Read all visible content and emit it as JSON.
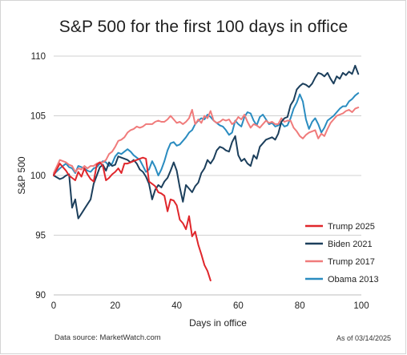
{
  "chart_data": {
    "type": "line",
    "title": "S&P 500 for the first 100 days in office",
    "xlabel": "Days in office",
    "ylabel": "S&P 500",
    "xlim": [
      0,
      100
    ],
    "ylim": [
      90,
      110
    ],
    "x_ticks": [
      0,
      20,
      40,
      60,
      80,
      100
    ],
    "y_ticks": [
      90,
      95,
      100,
      105,
      110
    ],
    "grid": "horizontal",
    "legend_position": "bottom-right",
    "series": [
      {
        "name": "Trump 2025",
        "color": "#e0262b",
        "x": [
          0,
          1,
          2,
          3,
          4,
          5,
          6,
          7,
          8,
          9,
          10,
          11,
          12,
          13,
          14,
          15,
          16,
          17,
          18,
          19,
          20,
          21,
          22,
          23,
          24,
          25,
          26,
          27,
          28,
          29,
          30,
          31,
          32,
          33,
          34,
          35,
          36,
          37,
          38,
          39,
          40,
          41,
          42,
          43,
          44,
          45,
          46,
          47,
          48,
          49,
          50,
          51
        ],
        "y": [
          100.0,
          100.5,
          101.0,
          100.7,
          100.4,
          100.0,
          99.8,
          99.6,
          100.3,
          99.9,
          100.6,
          100.1,
          99.7,
          99.5,
          100.9,
          101.1,
          100.8,
          99.6,
          99.8,
          100.1,
          100.3,
          100.6,
          100.2,
          101.0,
          101.0,
          101.1,
          101.2,
          101.3,
          101.4,
          101.5,
          101.4,
          99.5,
          99.3,
          99.1,
          98.6,
          98.5,
          98.3,
          97.0,
          98.0,
          97.9,
          97.5,
          96.3,
          96.0,
          95.5,
          96.6,
          94.9,
          95.3,
          94.2,
          93.4,
          92.5,
          92.0,
          91.2
        ]
      },
      {
        "name": "Biden 2021",
        "color": "#1c3f5c",
        "x": [
          0,
          2,
          3,
          4,
          5,
          6,
          7,
          8,
          9,
          10,
          11,
          12,
          13,
          14,
          15,
          16,
          17,
          18,
          19,
          20,
          21,
          22,
          23,
          24,
          25,
          26,
          27,
          28,
          29,
          30,
          31,
          32,
          33,
          34,
          35,
          36,
          37,
          38,
          39,
          40,
          41,
          42,
          43,
          44,
          45,
          46,
          47,
          48,
          49,
          50,
          51,
          52,
          53,
          54,
          55,
          56,
          57,
          58,
          59,
          60,
          61,
          62,
          63,
          64,
          65,
          66,
          67,
          68,
          69,
          70,
          71,
          72,
          73,
          74,
          75,
          76,
          77,
          78,
          79,
          80,
          81,
          82,
          83,
          84,
          85,
          86,
          87,
          88,
          89,
          90,
          91,
          92,
          93,
          94,
          95,
          96,
          97,
          98,
          99
        ],
        "y": [
          100.0,
          99.7,
          99.8,
          100.0,
          100.1,
          97.3,
          98.0,
          96.4,
          96.8,
          97.2,
          97.6,
          98.0,
          99.3,
          100.0,
          100.7,
          100.9,
          100.4,
          101.1,
          100.8,
          100.9,
          101.6,
          101.5,
          101.4,
          101.3,
          101.1,
          101.3,
          101.0,
          100.5,
          100.3,
          99.9,
          99.3,
          98.0,
          98.8,
          99.2,
          99.0,
          99.5,
          99.8,
          100.4,
          101.1,
          100.4,
          99.0,
          97.8,
          99.2,
          98.9,
          98.6,
          99.1,
          99.4,
          100.2,
          100.6,
          101.3,
          101.0,
          101.4,
          102.1,
          102.4,
          102.3,
          102.1,
          102.0,
          102.8,
          103.3,
          101.7,
          101.2,
          101.4,
          101.0,
          100.8,
          101.7,
          101.4,
          102.4,
          102.7,
          103.0,
          103.1,
          103.2,
          103.0,
          103.5,
          104.5,
          104.8,
          104.9,
          105.9,
          106.3,
          107.2,
          107.5,
          107.7,
          107.6,
          107.4,
          107.7,
          108.2,
          108.6,
          108.5,
          108.3,
          108.6,
          108.1,
          107.7,
          108.3,
          108.1,
          108.6,
          108.4,
          108.7,
          108.5,
          109.2,
          108.5
        ]
      },
      {
        "name": "Trump 2017",
        "color": "#f07b7b",
        "x": [
          0,
          2,
          3,
          4,
          5,
          6,
          7,
          8,
          9,
          10,
          11,
          12,
          13,
          14,
          15,
          16,
          17,
          18,
          19,
          20,
          21,
          22,
          23,
          24,
          25,
          26,
          27,
          28,
          29,
          30,
          31,
          32,
          33,
          34,
          35,
          36,
          37,
          38,
          39,
          40,
          41,
          42,
          43,
          44,
          45,
          46,
          47,
          48,
          49,
          50,
          51,
          52,
          53,
          54,
          55,
          56,
          57,
          58,
          59,
          60,
          61,
          62,
          63,
          64,
          65,
          66,
          67,
          68,
          69,
          70,
          71,
          72,
          73,
          74,
          75,
          76,
          77,
          78,
          79,
          80,
          81,
          82,
          83,
          84,
          85,
          86,
          87,
          88,
          89,
          90,
          91,
          92,
          93,
          94,
          95,
          96,
          97,
          98,
          99
        ],
        "y": [
          100.2,
          101.3,
          101.2,
          101.1,
          100.9,
          100.8,
          100.3,
          100.6,
          100.5,
          100.8,
          100.6,
          100.8,
          100.8,
          101.0,
          101.1,
          101.1,
          101.3,
          101.8,
          102.0,
          102.4,
          102.9,
          103.0,
          103.2,
          103.6,
          103.8,
          103.9,
          104.1,
          104.0,
          104.1,
          104.3,
          104.3,
          104.3,
          104.5,
          104.6,
          104.5,
          104.5,
          104.7,
          105.0,
          104.7,
          104.4,
          104.5,
          104.3,
          104.5,
          104.8,
          105.5,
          104.3,
          104.7,
          104.4,
          105.0,
          104.8,
          105.4,
          104.6,
          104.4,
          104.5,
          104.7,
          104.6,
          104.7,
          104.3,
          104.5,
          104.9,
          104.7,
          105.1,
          104.5,
          104.0,
          104.3,
          104.2,
          104.0,
          104.3,
          104.6,
          104.4,
          104.5,
          104.3,
          104.3,
          104.8,
          104.5,
          104.6,
          104.6,
          104.0,
          103.7,
          103.3,
          103.1,
          103.4,
          103.6,
          103.7,
          103.8,
          103.1,
          103.5,
          103.3,
          103.9,
          104.4,
          104.7,
          105.0,
          105.1,
          105.2,
          105.4,
          105.5,
          105.3,
          105.6,
          105.7
        ]
      },
      {
        "name": "Obama 2013",
        "color": "#2a8cc0",
        "x": [
          0,
          2,
          3,
          4,
          5,
          6,
          7,
          8,
          9,
          10,
          11,
          12,
          13,
          14,
          15,
          16,
          17,
          18,
          19,
          20,
          21,
          22,
          23,
          24,
          25,
          26,
          27,
          28,
          29,
          30,
          31,
          32,
          33,
          34,
          35,
          36,
          37,
          38,
          39,
          40,
          41,
          42,
          43,
          44,
          45,
          46,
          47,
          48,
          49,
          50,
          51,
          52,
          53,
          54,
          55,
          56,
          57,
          58,
          59,
          60,
          61,
          62,
          63,
          64,
          65,
          66,
          67,
          68,
          69,
          70,
          71,
          72,
          73,
          74,
          75,
          76,
          77,
          78,
          79,
          80,
          81,
          82,
          83,
          84,
          85,
          86,
          87,
          88,
          89,
          90,
          91,
          92,
          93,
          94,
          95,
          96,
          97,
          98,
          99
        ],
        "y": [
          100.1,
          100.6,
          100.8,
          101.0,
          100.7,
          100.6,
          100.2,
          100.8,
          100.7,
          100.6,
          100.4,
          100.3,
          100.6,
          100.7,
          101.0,
          101.2,
          101.1,
          100.8,
          101.0,
          101.6,
          101.9,
          101.8,
          102.0,
          102.2,
          102.0,
          101.7,
          101.5,
          101.3,
          100.8,
          100.3,
          100.5,
          101.2,
          100.7,
          100.0,
          100.5,
          101.2,
          102.1,
          102.7,
          102.8,
          102.5,
          102.6,
          102.9,
          103.2,
          103.6,
          103.8,
          104.3,
          104.6,
          104.8,
          104.7,
          105.1,
          104.9,
          104.6,
          104.4,
          104.2,
          104.1,
          103.8,
          103.4,
          103.6,
          104.6,
          104.3,
          104.1,
          104.9,
          105.3,
          105.2,
          104.6,
          104.2,
          104.9,
          105.1,
          104.7,
          104.3,
          104.4,
          104.1,
          104.2,
          104.4,
          104.1,
          104.2,
          104.8,
          105.6,
          106.1,
          106.8,
          106.2,
          104.7,
          103.9,
          104.5,
          104.8,
          104.3,
          103.6,
          104.0,
          104.6,
          104.8,
          105.0,
          105.3,
          105.6,
          105.8,
          105.8,
          106.2,
          106.4,
          106.7,
          106.9
        ]
      }
    ]
  },
  "footer": {
    "source": "Data source: MarketWatch.com",
    "as_of": "As of 03/14/2025"
  }
}
